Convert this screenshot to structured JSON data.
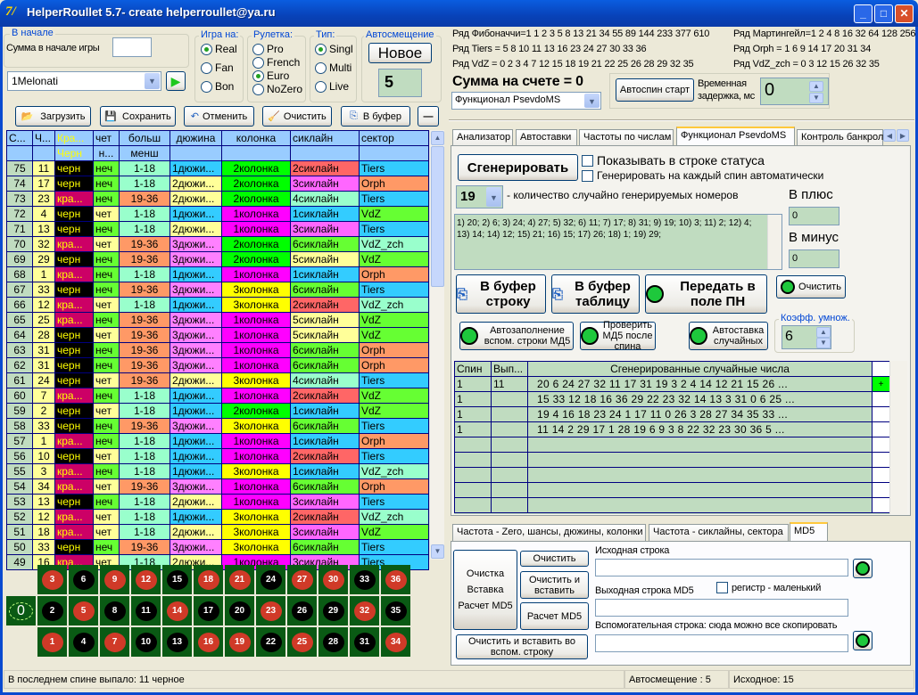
{
  "window": {
    "title": "HelperRoullet 5.7- create helperroullet@ya.ru",
    "logo": "7/",
    "min": "_",
    "max": "□",
    "close": "✕"
  },
  "start": {
    "group": "В начале",
    "sum_label": "Сумма в начале игры",
    "sum_value": "",
    "profile": "1Melonati"
  },
  "game_on": {
    "title": "Игра на:",
    "options": [
      "Real",
      "Fan",
      "Bon"
    ],
    "selected": "Real"
  },
  "roulette": {
    "title": "Рулетка:",
    "options": [
      "Pro",
      "French",
      "Euro",
      "NoZero"
    ],
    "selected": "Euro"
  },
  "type": {
    "title": "Тип:",
    "options": [
      "Singl",
      "Multi",
      "Live"
    ],
    "selected": "Singl"
  },
  "autoshift": {
    "title": "Автосмещение",
    "new_label": "Новое",
    "value": "5"
  },
  "toolbar": {
    "load": "Загрузить",
    "save": "Сохранить",
    "undo": "Отменить",
    "clear": "Очистить",
    "copy": "В буфер",
    "minus": "—"
  },
  "grid": {
    "headers1": [
      "С...",
      "Ч...",
      "Кра...",
      "чет",
      "больш",
      "дюжина",
      "колонка",
      "сиклайн",
      "сектор"
    ],
    "headers2": [
      "",
      "",
      "Черн",
      "н...",
      "менш",
      "",
      "",
      "",
      ""
    ],
    "rows": [
      [
        "75",
        "11",
        "черн",
        "неч",
        "1-18",
        "1дюжи...",
        "2колонка",
        "2сиклайн",
        "Tiers"
      ],
      [
        "74",
        "17",
        "черн",
        "неч",
        "1-18",
        "2дюжи...",
        "2колонка",
        "3сиклайн",
        "Orph"
      ],
      [
        "73",
        "23",
        "кра...",
        "неч",
        "19-36",
        "2дюжи...",
        "2колонка",
        "4сиклайн",
        "Tiers"
      ],
      [
        "72",
        "4",
        "черн",
        "чет",
        "1-18",
        "1дюжи...",
        "1колонка",
        "1сиклайн",
        "VdZ"
      ],
      [
        "71",
        "13",
        "черн",
        "неч",
        "1-18",
        "2дюжи...",
        "1колонка",
        "3сиклайн",
        "Tiers"
      ],
      [
        "70",
        "32",
        "кра...",
        "чет",
        "19-36",
        "3дюжи...",
        "2колонка",
        "6сиклайн",
        "VdZ_zch"
      ],
      [
        "69",
        "29",
        "черн",
        "неч",
        "19-36",
        "3дюжи...",
        "2колонка",
        "5сиклайн",
        "VdZ"
      ],
      [
        "68",
        "1",
        "кра...",
        "неч",
        "1-18",
        "1дюжи...",
        "1колонка",
        "1сиклайн",
        "Orph"
      ],
      [
        "67",
        "33",
        "черн",
        "неч",
        "19-36",
        "3дюжи...",
        "3колонка",
        "6сиклайн",
        "Tiers"
      ],
      [
        "66",
        "12",
        "кра...",
        "чет",
        "1-18",
        "1дюжи...",
        "3колонка",
        "2сиклайн",
        "VdZ_zch"
      ],
      [
        "65",
        "25",
        "кра...",
        "неч",
        "19-36",
        "3дюжи...",
        "1колонка",
        "5сиклайн",
        "VdZ"
      ],
      [
        "64",
        "28",
        "черн",
        "чет",
        "19-36",
        "3дюжи...",
        "1колонка",
        "5сиклайн",
        "VdZ"
      ],
      [
        "63",
        "31",
        "черн",
        "неч",
        "19-36",
        "3дюжи...",
        "1колонка",
        "6сиклайн",
        "Orph"
      ],
      [
        "62",
        "31",
        "черн",
        "неч",
        "19-36",
        "3дюжи...",
        "1колонка",
        "6сиклайн",
        "Orph"
      ],
      [
        "61",
        "24",
        "черн",
        "чет",
        "19-36",
        "2дюжи...",
        "3колонка",
        "4сиклайн",
        "Tiers"
      ],
      [
        "60",
        "7",
        "кра...",
        "неч",
        "1-18",
        "1дюжи...",
        "1колонка",
        "2сиклайн",
        "VdZ"
      ],
      [
        "59",
        "2",
        "черн",
        "чет",
        "1-18",
        "1дюжи...",
        "2колонка",
        "1сиклайн",
        "VdZ"
      ],
      [
        "58",
        "33",
        "черн",
        "неч",
        "19-36",
        "3дюжи...",
        "3колонка",
        "6сиклайн",
        "Tiers"
      ],
      [
        "57",
        "1",
        "кра...",
        "неч",
        "1-18",
        "1дюжи...",
        "1колонка",
        "1сиклайн",
        "Orph"
      ],
      [
        "56",
        "10",
        "черн",
        "чет",
        "1-18",
        "1дюжи...",
        "1колонка",
        "2сиклайн",
        "Tiers"
      ],
      [
        "55",
        "3",
        "кра...",
        "неч",
        "1-18",
        "1дюжи...",
        "3колонка",
        "1сиклайн",
        "VdZ_zch"
      ],
      [
        "54",
        "34",
        "кра...",
        "чет",
        "19-36",
        "3дюжи...",
        "1колонка",
        "6сиклайн",
        "Orph"
      ],
      [
        "53",
        "13",
        "черн",
        "неч",
        "1-18",
        "2дюжи...",
        "1колонка",
        "3сиклайн",
        "Tiers"
      ],
      [
        "52",
        "12",
        "кра...",
        "чет",
        "1-18",
        "1дюжи...",
        "3колонка",
        "2сиклайн",
        "VdZ_zch"
      ],
      [
        "51",
        "18",
        "кра...",
        "чет",
        "1-18",
        "2дюжи...",
        "3колонка",
        "3сиклайн",
        "VdZ"
      ],
      [
        "50",
        "33",
        "черн",
        "неч",
        "19-36",
        "3дюжи...",
        "3колонка",
        "6сиклайн",
        "Tiers"
      ],
      [
        "49",
        "16",
        "кра...",
        "чет",
        "1-18",
        "2дюжи...",
        "1колонка",
        "3сиклайн",
        "Tiers"
      ]
    ]
  },
  "colors": {
    "spin": "#c0dcc0",
    "num": "#ffff99",
    "black": "#000000",
    "red": "#cc0066",
    "color_text": "#ffff00",
    "odd": "#66ff33",
    "even": "#ffff99",
    "low": "#99ffcc",
    "high": "#ff9966",
    "dozen": {
      "1": "#33ccff",
      "2": "#ffff99",
      "3": "#ff80ff"
    },
    "column": {
      "1": "#ff00ff",
      "2": "#00ff00",
      "3": "#ffff00"
    },
    "sixline": {
      "1": "#33ccff",
      "2": "#ff6666",
      "3": "#ff66ff",
      "4": "#99ffcc",
      "5": "#ffff99",
      "6": "#66ff33"
    },
    "sector": {
      "Tiers": "#33ccff",
      "Orph": "#ff9966",
      "VdZ": "#66ff33",
      "VdZ_zch": "#99ffcc"
    },
    "felt": "#0a5a14",
    "ball_red": "#d03a28",
    "ball_black": "#000000"
  },
  "board": {
    "zero": "0",
    "rows": [
      [
        3,
        6,
        9,
        12,
        15,
        18,
        21,
        24,
        27,
        30,
        33,
        36
      ],
      [
        2,
        5,
        8,
        11,
        14,
        17,
        20,
        23,
        26,
        29,
        32,
        35
      ],
      [
        1,
        4,
        7,
        10,
        13,
        16,
        19,
        22,
        25,
        28,
        31,
        34
      ]
    ],
    "red": [
      1,
      3,
      5,
      7,
      9,
      12,
      14,
      16,
      18,
      19,
      21,
      23,
      25,
      27,
      30,
      32,
      34,
      36
    ]
  },
  "series": {
    "fib": "Ряд Фибоначчи=1 1 2 3 5 8 13 21 34 55 89 144 233 377 610",
    "tiers": "Ряд Tiers = 5 8 10 11 13 16 23 24 27 30 33 36",
    "vdz": "Ряд VdZ = 0 2 3 4 7 12 15 18 19 21 22 25 26 28 29 32 35",
    "mart": "Ряд Мартингейл=1 2 4 8 16 32 64 128 256",
    "orph": "Ряд Orph = 1 6 9 14 17 20 31 34",
    "vdz_zch": "Ряд VdZ_zch = 0 3 12 15 26 32 35"
  },
  "account": {
    "label": "Сумма на счете = 0",
    "mode": "Функционал PsevdoMS"
  },
  "autospin": {
    "button": "Автоспин старт",
    "delay_label": "Временная задержка, мс",
    "delay_value": "0"
  },
  "tabs": [
    "Анализатор",
    "Автоставки",
    "Частоты по числам",
    "Функционал PsevdoMS",
    "Контроль банкрол"
  ],
  "psevdo": {
    "generate": "Сгенерировать",
    "show_status": "Показывать в строке статуса",
    "auto_gen": "Генерировать на каждый спин автоматически",
    "count": "19",
    "count_label": "- количество случайно генерируемых номеров",
    "output": "1) 20; 2) 6; 3) 24; 4) 27; 5) 32; 6) 11; 7) 17; 8) 31; 9) 19; 10) 3; 11) 2; 12) 4; 13) 14; 14) 12; 15) 21; 16) 15; 17) 26; 18) 1; 19) 29;",
    "plus_label": "В плюс",
    "plus": "0",
    "minus_label": "В минус",
    "minus": "0",
    "copy_row": "В буфер строку",
    "copy_table": "В буфер таблицу",
    "send_pn": "Передать в поле ПН",
    "clear": "Очистить",
    "autofill": "Автозаполнение вспом. строки МД5",
    "check_md5": "Проверить МД5 после спина",
    "autobet": "Автоставка случайных",
    "coef_label": "Коэфф. умнож.",
    "coef": "6",
    "gen_headers": [
      "Спин",
      "Вып...",
      "Сгенерированные случайные числа"
    ],
    "gen_rows": [
      {
        "spin": "1",
        "hit": "11",
        "nums": "20  6  24  27  32  11  17  31  19  3  2  4  14  12  21  15  26 ...",
        "mark": "+"
      },
      {
        "spin": "1",
        "hit": "",
        "nums": "15  33  12  18  16  36  29  22  23  32  14  13  3  31  0  6  25 ...",
        "mark": ""
      },
      {
        "spin": "1",
        "hit": "",
        "nums": "19  4  16  18  23  24  1  17  11  0  26  3  28  27  34  35  33  ...",
        "mark": ""
      },
      {
        "spin": "1",
        "hit": "",
        "nums": "11  14  2  29  17  1  28  19  6  9  3  8  22  32  23  30  36  5 ...",
        "mark": ""
      }
    ]
  },
  "bottom_tabs": [
    "Частота - Zero, шансы, дюжины, колонки",
    "Частота - сиклайны, сектора",
    "MD5"
  ],
  "md5": {
    "big": "Очистка Вставка Расчет MD5",
    "clear": "Очистить",
    "clear_paste": "Очистить и вставить",
    "calc": "Расчет MD5",
    "clear_aux": "Очистить и  вставить во вспом. строку",
    "src_label": "Исходная строка",
    "out_label": "Выходная строка MD5",
    "case_label": "регистр  - маленький",
    "aux_label": "Вспомогательная строка: сюда можно все скопировать"
  },
  "status": {
    "last": "В последнем спине выпало: 11 черное",
    "autoshift": "Автосмещение : 5",
    "initial": "Исходное: 15"
  }
}
